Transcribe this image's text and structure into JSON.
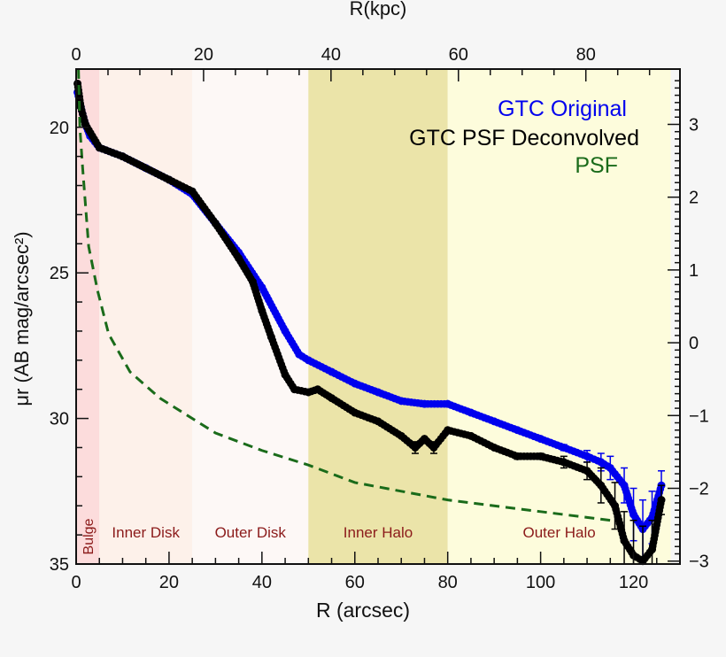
{
  "chart_data": {
    "type": "scatter",
    "xlabel": "R (arcsec)",
    "ylabel": "μr (AB mag/arcsec²)",
    "top_xlabel": "R(kpc)",
    "xlim": [
      0,
      130
    ],
    "ylim": [
      18,
      35
    ],
    "y_inverted": true,
    "x_ticks": [
      0,
      20,
      40,
      60,
      80,
      100,
      120
    ],
    "y_ticks": [
      20,
      25,
      30,
      35
    ],
    "top_ticks_kpc": [
      0,
      20,
      40,
      60,
      80
    ],
    "kpc_per_arcsec": 0.729,
    "right_ticks": [
      3,
      2,
      1,
      0,
      -1,
      -2,
      -3
    ],
    "right_axis_zero_mag": 27.4,
    "grid": false,
    "legend_placement": "top-right",
    "regions": [
      {
        "label": "Bulge",
        "x0": 0,
        "x1": 5,
        "color": "#fcdcdc",
        "vertical": true
      },
      {
        "label": "Inner Disk",
        "x0": 5,
        "x1": 25,
        "color": "#fdf1ea"
      },
      {
        "label": "Outer Disk",
        "x0": 25,
        "x1": 50,
        "color": "#fdf8f6"
      },
      {
        "label": "Inner Halo",
        "x0": 50,
        "x1": 80,
        "color": "#ebe4a9"
      },
      {
        "label": "Outer Halo",
        "x0": 80,
        "x1": 128,
        "color": "#fdfcdc"
      }
    ],
    "region_label_color": "#8b1a1a",
    "series": [
      {
        "name": "GTC Original",
        "color": "#0000ee",
        "style": "points",
        "x": [
          0.3,
          1,
          2,
          3,
          5,
          10,
          15,
          20,
          25,
          30,
          35,
          40,
          45,
          48,
          50,
          55,
          60,
          65,
          70,
          75,
          80,
          85,
          90,
          95,
          100,
          105,
          110,
          113,
          115,
          118,
          120,
          122,
          124,
          126
        ],
        "y": [
          18.8,
          19.3,
          19.9,
          20.3,
          20.7,
          21.0,
          21.4,
          21.8,
          22.3,
          23.3,
          24.3,
          25.5,
          27.0,
          27.8,
          28.0,
          28.4,
          28.8,
          29.1,
          29.4,
          29.5,
          29.5,
          29.8,
          30.1,
          30.4,
          30.7,
          31.0,
          31.3,
          31.5,
          31.7,
          32.3,
          33.3,
          33.8,
          33.4,
          32.3
        ],
        "err": [
          0,
          0,
          0,
          0,
          0,
          0,
          0,
          0,
          0,
          0,
          0,
          0,
          0,
          0,
          0,
          0,
          0,
          0,
          0,
          0,
          0,
          0,
          0,
          0,
          0,
          0.1,
          0.2,
          0.3,
          0.4,
          0.6,
          0.9,
          1.0,
          0.9,
          0.5
        ]
      },
      {
        "name": "GTC PSF Deconvolved",
        "color": "#000000",
        "style": "points",
        "x": [
          0.3,
          1,
          2,
          5,
          10,
          20,
          25,
          30,
          35,
          38,
          40,
          42,
          45,
          47,
          50,
          52,
          55,
          60,
          65,
          70,
          73,
          75,
          77,
          80,
          85,
          90,
          95,
          100,
          105,
          110,
          113,
          116,
          118,
          120,
          122,
          124,
          126
        ],
        "y": [
          18.5,
          19.3,
          19.9,
          20.7,
          21.0,
          21.8,
          22.2,
          23.3,
          24.5,
          25.3,
          26.3,
          27.2,
          28.5,
          29.0,
          29.1,
          29.0,
          29.3,
          29.8,
          30.1,
          30.6,
          31.0,
          30.7,
          31.0,
          30.4,
          30.6,
          31.0,
          31.3,
          31.3,
          31.5,
          31.8,
          32.3,
          33.0,
          34.2,
          34.7,
          34.9,
          34.5,
          32.8
        ],
        "err": [
          0,
          0,
          0,
          0,
          0,
          0,
          0,
          0,
          0,
          0,
          0,
          0,
          0,
          0,
          0,
          0,
          0,
          0,
          0,
          0,
          0.2,
          0,
          0.2,
          0,
          0,
          0,
          0.1,
          0.1,
          0.2,
          0.3,
          0.6,
          0.8,
          1.0,
          1.2,
          1.2,
          1.0,
          0.5
        ]
      },
      {
        "name": "PSF",
        "color": "#1a6b1a",
        "style": "dashed",
        "x": [
          0.5,
          0.8,
          1.4,
          2.7,
          4.6,
          7,
          11.6,
          18,
          30,
          40,
          50,
          60,
          70,
          80,
          90,
          100,
          110,
          115
        ],
        "y": [
          18,
          20,
          21.4,
          24.1,
          25.6,
          27.1,
          28.4,
          29.3,
          30.5,
          31.1,
          31.6,
          32.2,
          32.5,
          32.8,
          33.0,
          33.2,
          33.4,
          33.5
        ]
      }
    ]
  }
}
